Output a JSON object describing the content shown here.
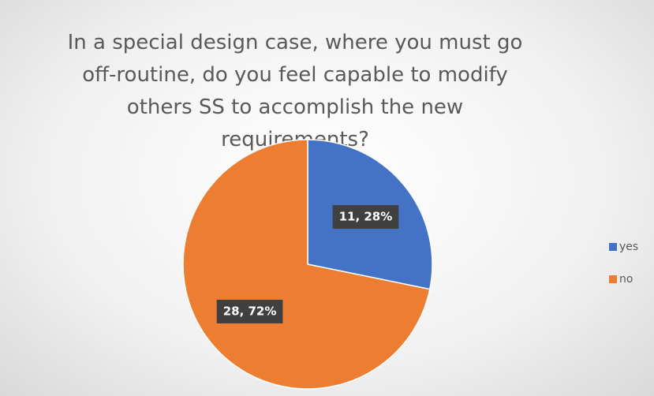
{
  "chart_data": {
    "type": "pie",
    "title": "In a special design case, where you must go off-routine, do you feel capable to modify others SS to accomplish the new requirements?",
    "categories": [
      "yes",
      "no"
    ],
    "values": [
      11,
      28
    ],
    "value_labels": [
      "11, 28%",
      "28, 72%"
    ],
    "colors": [
      "#4472c4",
      "#ed7d31"
    ],
    "legend": "right"
  }
}
